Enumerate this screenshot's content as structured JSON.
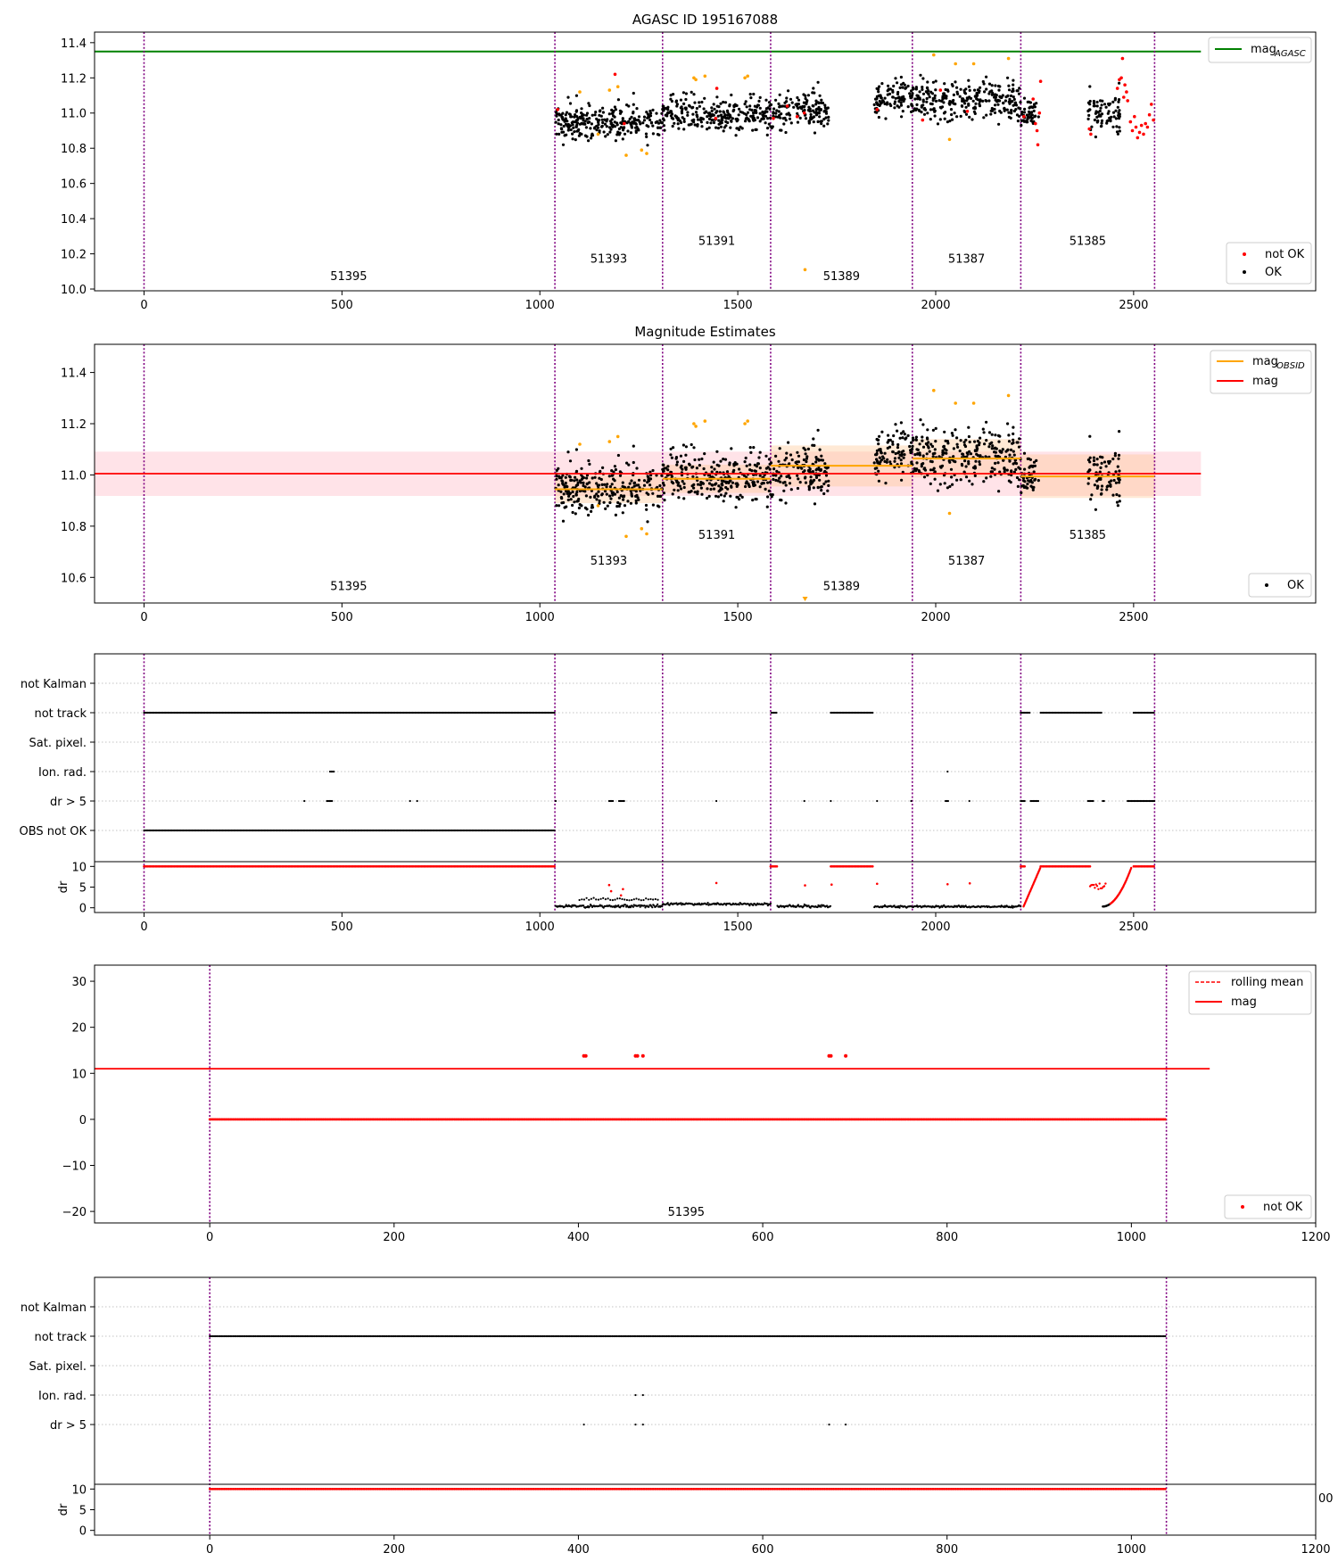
{
  "figure": {
    "title": "AGASC ID 195167088"
  },
  "colors": {
    "ok": "#000000",
    "not_ok": "#ff0000",
    "ok_extra": "#ffa500",
    "mag_agasc": "#008000",
    "mag": "#ff0000",
    "mag_obsid": "#ffa500",
    "obsid_line": "#800080",
    "band_mag": "#ffc0cb",
    "band_obsid": "#ffc896"
  },
  "flag_labels": [
    "not Kalman",
    "not track",
    "Sat. pixel.",
    "Ion. rad.",
    "dr > 5",
    "OBS not OK"
  ],
  "flag_labels_single": [
    "not Kalman",
    "not track",
    "Sat. pixel.",
    "Ion. rad.",
    "dr > 5"
  ],
  "offscreen_tick_fragment": "00",
  "obsids": {
    "boundaries": [
      0,
      1038,
      1310,
      1583,
      1941,
      2215,
      2553
    ],
    "labels": [
      {
        "text": "51395",
        "x": 517,
        "y": 10.05,
        "y2": 10.55
      },
      {
        "text": "51393",
        "x": 1174,
        "y": 10.15,
        "y2": 10.65
      },
      {
        "text": "51391",
        "x": 1447,
        "y": 10.25,
        "y2": 10.75
      },
      {
        "text": "51389",
        "x": 1762,
        "y": 10.05,
        "y2": 10.55
      },
      {
        "text": "51387",
        "x": 2078,
        "y": 10.15,
        "y2": 10.65
      },
      {
        "text": "51385",
        "x": 2384,
        "y": 10.25,
        "y2": 10.75
      }
    ]
  },
  "chart_data": [
    {
      "id": "agasc-magnitude",
      "type": "scatter",
      "title": "AGASC ID 195167088",
      "xlim": [
        -125,
        2960
      ],
      "ylim": [
        9.99,
        11.46
      ],
      "xticks": [
        0,
        500,
        1000,
        1500,
        2000,
        2500
      ],
      "yticks": [
        10.0,
        10.2,
        10.4,
        10.6,
        10.8,
        11.0,
        11.2,
        11.4
      ],
      "lines": [
        {
          "name": "mag_AGASC",
          "y": 11.35,
          "x": [
            -125,
            2670
          ],
          "color": "#008000"
        }
      ],
      "legend": [
        {
          "label": "mag",
          "sub": "AGASC",
          "position": "top-right"
        },
        {
          "label": "not OK",
          "position": "bottom-right"
        },
        {
          "label": "OK",
          "position": "bottom-right"
        }
      ],
      "series": [
        {
          "name": "OK",
          "segments": [
            [
              1040,
              1310,
              10.95,
              0.085
            ],
            [
              1310,
              1583,
              10.99,
              0.085
            ],
            [
              1583,
              1730,
              11.01,
              0.09
            ],
            [
              1845,
              1941,
              11.08,
              0.08
            ],
            [
              1941,
              2215,
              11.07,
              0.09
            ],
            [
              2215,
              2260,
              11.0,
              0.07
            ],
            [
              2385,
              2465,
              11.0,
              0.1
            ]
          ],
          "count": 1180
        },
        {
          "name": "not OK",
          "points": [
            [
              1045,
              11.02
            ],
            [
              1190,
              11.22
            ],
            [
              1213,
              10.94
            ],
            [
              1444,
              10.97
            ],
            [
              1447,
              11.14
            ],
            [
              1590,
              10.97
            ],
            [
              1625,
              11.04
            ],
            [
              1650,
              10.98
            ],
            [
              1668,
              11.0
            ],
            [
              1852,
              11.02
            ],
            [
              1967,
              10.96
            ],
            [
              2012,
              11.13
            ],
            [
              2080,
              11.01
            ],
            [
              2223,
              10.98
            ],
            [
              2246,
              11.08
            ],
            [
              2252,
              10.94
            ],
            [
              2256,
              10.9
            ],
            [
              2258,
              10.82
            ],
            [
              2262,
              11.0
            ],
            [
              2265,
              11.18
            ],
            [
              2388,
              10.91
            ],
            [
              2392,
              10.88
            ],
            [
              2459,
              11.14
            ],
            [
              2464,
              11.19
            ],
            [
              2469,
              11.2
            ],
            [
              2472,
              11.31
            ],
            [
              2475,
              11.09
            ],
            [
              2478,
              11.16
            ],
            [
              2482,
              11.12
            ],
            [
              2485,
              11.07
            ],
            [
              2492,
              10.95
            ],
            [
              2497,
              10.9
            ],
            [
              2502,
              10.98
            ],
            [
              2506,
              10.92
            ],
            [
              2510,
              10.86
            ],
            [
              2515,
              10.89
            ],
            [
              2520,
              10.93
            ],
            [
              2525,
              10.88
            ],
            [
              2530,
              10.94
            ],
            [
              2535,
              10.92
            ],
            [
              2540,
              10.99
            ],
            [
              2545,
              11.05
            ],
            [
              2550,
              10.96
            ]
          ]
        },
        {
          "name": "OK (unlabelled, orange)",
          "points": [
            [
              1101,
              11.12
            ],
            [
              1147,
              10.88
            ],
            [
              1176,
              11.13
            ],
            [
              1197,
              11.15
            ],
            [
              1218,
              10.76
            ],
            [
              1257,
              10.79
            ],
            [
              1270,
              10.77
            ],
            [
              1389,
              11.2
            ],
            [
              1394,
              11.19
            ],
            [
              1417,
              11.21
            ],
            [
              1518,
              11.2
            ],
            [
              1525,
              11.21
            ],
            [
              1670,
              10.11
            ],
            [
              1995,
              11.33
            ],
            [
              2035,
              10.85
            ],
            [
              2050,
              11.28
            ],
            [
              2096,
              11.28
            ],
            [
              2184,
              11.31
            ]
          ]
        }
      ]
    },
    {
      "id": "magnitude-estimates",
      "type": "scatter",
      "title": "Magnitude Estimates",
      "xlim": [
        -125,
        2960
      ],
      "ylim": [
        10.5,
        11.51
      ],
      "xticks": [
        0,
        500,
        1000,
        1500,
        2000,
        2500
      ],
      "yticks": [
        10.6,
        10.8,
        11.0,
        11.2,
        11.4
      ],
      "legend": [
        {
          "label": "mag",
          "sub": "OBSID",
          "position": "top-right"
        },
        {
          "label": "mag",
          "position": "top-right"
        },
        {
          "label": "OK",
          "position": "bottom-right"
        }
      ],
      "mag_line": {
        "y": 11.005,
        "band": [
          10.918,
          11.091
        ],
        "x": [
          -125,
          2670
        ]
      },
      "obsid_mags": [
        {
          "x": [
            1038,
            1310
          ],
          "y": 10.944,
          "band": [
            10.89,
            11.0
          ]
        },
        {
          "x": [
            1310,
            1583
          ],
          "y": 10.985,
          "band": [
            10.93,
            11.04
          ]
        },
        {
          "x": [
            1583,
            1941
          ],
          "y": 11.036,
          "band": [
            10.955,
            11.115
          ]
        },
        {
          "x": [
            1941,
            2215
          ],
          "y": 11.064,
          "band": [
            10.99,
            11.14
          ]
        },
        {
          "x": [
            2215,
            2553
          ],
          "y": 10.994,
          "band": [
            10.91,
            11.08
          ]
        }
      ],
      "series": [
        {
          "name": "OK",
          "count": 1180
        }
      ]
    },
    {
      "id": "flags-all",
      "type": "scatter",
      "xlim": [
        -125,
        2960
      ],
      "xticks": [
        0,
        500,
        1000,
        1500,
        2000,
        2500
      ],
      "ylabel_dr": "dr",
      "dr_ylim": [
        -0.5,
        10.5
      ],
      "dr_yticks": [
        0,
        5,
        10
      ],
      "flags": {
        "not track": [
          [
            0,
            1038
          ],
          [
            1585,
            1600
          ],
          [
            1735,
            1842
          ],
          [
            2215,
            2240
          ],
          [
            2265,
            2420
          ],
          [
            2500,
            2553
          ]
        ],
        "Ion. rad.": [
          [
            470,
            480
          ],
          [
            2030,
            2032
          ]
        ],
        "dr > 5": [
          [
            405,
            407
          ],
          [
            462,
            475
          ],
          [
            672,
            674
          ],
          [
            690,
            692
          ],
          [
            1040,
            1042
          ],
          [
            1175,
            1185
          ],
          [
            1200,
            1215
          ],
          [
            1446,
            1448
          ],
          [
            1668,
            1670
          ],
          [
            1735,
            1737
          ],
          [
            1852,
            1854
          ],
          [
            1938,
            1940
          ],
          [
            2025,
            2032
          ],
          [
            2085,
            2087
          ],
          [
            2215,
            2225
          ],
          [
            2240,
            2262
          ],
          [
            2385,
            2400
          ],
          [
            2422,
            2427
          ],
          [
            2485,
            2553
          ]
        ],
        "OBS not OK": [
          [
            0,
            1038
          ]
        ]
      },
      "dr_capped": [
        [
          0,
          1038
        ],
        [
          1583,
          1600
        ],
        [
          1735,
          1842
        ],
        [
          2215,
          2225
        ],
        [
          2265,
          2390
        ],
        [
          2500,
          2553
        ]
      ]
    },
    {
      "id": "obsid-51395-magnitude",
      "type": "scatter",
      "xlim": [
        -125,
        1200
      ],
      "ylim": [
        -22.5,
        33.5
      ],
      "xticks": [
        0,
        200,
        400,
        600,
        800,
        1000,
        1200
      ],
      "yticks": [
        -20,
        -10,
        0,
        10,
        20,
        30
      ],
      "mag_y": 11.005,
      "mag_x": [
        -125,
        1085
      ],
      "series": [
        {
          "name": "not OK",
          "baseline_y": 0,
          "x_range": [
            0,
            1038
          ],
          "outliers": [
            [
              406,
              13.8
            ],
            [
              408,
              13.8
            ],
            [
              462,
              13.8
            ],
            [
              464,
              13.8
            ],
            [
              470,
              13.8
            ],
            [
              672,
              13.8
            ],
            [
              674,
              13.8
            ],
            [
              690,
              13.8
            ]
          ]
        }
      ],
      "legend": [
        {
          "label": "rolling mean",
          "position": "top-right"
        },
        {
          "label": "mag",
          "position": "top-right"
        },
        {
          "label": "not OK",
          "position": "bottom-right"
        }
      ],
      "obsid_label": {
        "text": "51395",
        "x": 517,
        "y": -20
      }
    },
    {
      "id": "obsid-51395-flags",
      "type": "scatter",
      "xlim": [
        -125,
        1200
      ],
      "xticks": [
        0,
        200,
        400,
        600,
        800,
        1000,
        1200
      ],
      "ylabel_dr": "dr",
      "dr_ylim": [
        -0.5,
        10.5
      ],
      "dr_yticks": [
        0,
        5,
        10
      ],
      "flags": {
        "not track": [
          [
            0,
            1038
          ]
        ],
        "Ion. rad.": [
          [
            462,
            463
          ],
          [
            470,
            471
          ]
        ],
        "dr > 5": [
          [
            406,
            407
          ],
          [
            462,
            463
          ],
          [
            470,
            471
          ],
          [
            672,
            673
          ],
          [
            690,
            691
          ]
        ]
      },
      "dr_capped": [
        [
          0,
          1038
        ]
      ]
    }
  ]
}
